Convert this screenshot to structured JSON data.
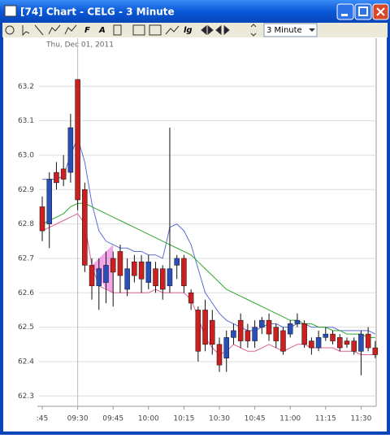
{
  "window": {
    "title": "[74]  Chart - CELG - 3 Minute"
  },
  "toolbar": {
    "labels": [
      "F",
      "A",
      "lg"
    ],
    "timeframe": "3 Minute"
  },
  "chart_data": {
    "type": "candlestick",
    "subtitle": "Thu, Dec 01, 2011",
    "categories": [
      ":45",
      null,
      null,
      null,
      null,
      "09:30",
      null,
      null,
      null,
      null,
      "09:45",
      null,
      null,
      null,
      null,
      "10:00",
      null,
      null,
      null,
      null,
      "10:15",
      null,
      null,
      null,
      null,
      "10:30",
      null,
      null,
      null,
      null,
      "10:45",
      null,
      null,
      null,
      null,
      "11:00",
      null,
      null,
      null,
      null,
      "11:15",
      null,
      null,
      null,
      null,
      "11:30",
      null,
      null
    ],
    "open": [
      62.85,
      62.8,
      62.95,
      62.96,
      62.95,
      63.22,
      62.9,
      62.68,
      62.62,
      62.63,
      62.7,
      62.72,
      62.61,
      62.69,
      62.69,
      62.63,
      62.67,
      62.67,
      62.62,
      62.68,
      62.7,
      62.6,
      62.55,
      62.55,
      62.52,
      62.45,
      62.41,
      62.47,
      62.52,
      62.49,
      62.46,
      62.5,
      62.52,
      62.5,
      62.49,
      62.48,
      62.51,
      62.51,
      62.46,
      62.44,
      62.47,
      62.48,
      62.47,
      62.46,
      62.46,
      62.43,
      62.48,
      62.44
    ],
    "high": [
      62.88,
      62.95,
      62.98,
      63.0,
      63.12,
      63.22,
      62.92,
      62.7,
      62.7,
      62.72,
      62.72,
      62.74,
      62.7,
      62.71,
      62.71,
      62.71,
      62.69,
      62.68,
      63.08,
      62.71,
      62.71,
      62.61,
      62.56,
      62.58,
      62.55,
      62.47,
      62.49,
      62.51,
      62.54,
      62.51,
      62.52,
      62.53,
      62.54,
      62.51,
      62.5,
      62.52,
      62.54,
      62.52,
      62.47,
      62.49,
      62.5,
      62.49,
      62.48,
      62.47,
      62.47,
      62.49,
      62.5,
      62.46
    ],
    "low": [
      62.75,
      62.73,
      62.9,
      62.91,
      62.92,
      62.84,
      62.66,
      62.58,
      62.55,
      62.57,
      62.56,
      62.6,
      62.59,
      62.63,
      62.6,
      62.61,
      62.6,
      62.58,
      62.6,
      62.64,
      62.6,
      62.55,
      62.4,
      62.43,
      62.42,
      62.37,
      62.37,
      62.45,
      62.44,
      62.44,
      62.44,
      62.48,
      62.46,
      62.44,
      62.42,
      62.47,
      62.5,
      62.44,
      62.42,
      62.43,
      62.46,
      62.45,
      62.43,
      62.44,
      62.42,
      62.36,
      62.43,
      62.41
    ],
    "close": [
      62.78,
      62.93,
      62.92,
      62.93,
      63.08,
      62.87,
      62.68,
      62.62,
      62.67,
      62.68,
      62.66,
      62.65,
      62.67,
      62.65,
      62.64,
      62.69,
      62.62,
      62.61,
      62.67,
      62.7,
      62.62,
      62.57,
      62.43,
      62.45,
      62.45,
      62.39,
      62.47,
      62.49,
      62.46,
      62.46,
      62.5,
      62.52,
      62.48,
      62.46,
      62.43,
      62.51,
      62.52,
      62.45,
      62.44,
      62.47,
      62.48,
      62.46,
      62.44,
      62.45,
      62.43,
      62.48,
      62.44,
      62.42
    ],
    "up_color": "#2b4fb8",
    "down_color": "#cc1f1f",
    "lines": [
      {
        "color": "#5a6fd0",
        "values": [
          62.93,
          62.93,
          62.93,
          62.94,
          63.0,
          63.05,
          62.98,
          62.86,
          62.78,
          62.75,
          62.74,
          62.73,
          62.73,
          62.72,
          62.72,
          62.71,
          62.71,
          62.7,
          62.79,
          62.8,
          62.78,
          62.74,
          62.67,
          62.6,
          62.57,
          62.54,
          62.52,
          62.51,
          62.5,
          62.49,
          62.49,
          62.5,
          62.51,
          62.51,
          62.5,
          62.5,
          62.51,
          62.51,
          62.5,
          62.5,
          62.5,
          62.5,
          62.49,
          62.49,
          62.49,
          62.49,
          62.49,
          62.48
        ]
      },
      {
        "color": "#2ea82e",
        "values": [
          62.8,
          62.81,
          62.82,
          62.83,
          62.85,
          62.86,
          62.86,
          62.85,
          62.84,
          62.83,
          62.82,
          62.81,
          62.8,
          62.79,
          62.78,
          62.77,
          62.76,
          62.75,
          62.74,
          62.73,
          62.72,
          62.71,
          62.69,
          62.67,
          62.65,
          62.63,
          62.61,
          62.6,
          62.59,
          62.58,
          62.57,
          62.56,
          62.55,
          62.54,
          62.53,
          62.52,
          62.52,
          62.51,
          62.51,
          62.5,
          62.5,
          62.49,
          62.49,
          62.48,
          62.48,
          62.48,
          62.47,
          62.47
        ]
      },
      {
        "color": "#e0609a",
        "values": [
          62.78,
          62.79,
          62.8,
          62.81,
          62.82,
          62.83,
          62.8,
          62.68,
          62.62,
          62.61,
          62.6,
          62.6,
          62.6,
          62.6,
          62.6,
          62.6,
          62.61,
          62.6,
          62.6,
          62.6,
          62.6,
          62.58,
          62.53,
          62.47,
          62.44,
          62.42,
          62.43,
          62.45,
          62.44,
          62.43,
          62.43,
          62.44,
          62.45,
          62.44,
          62.43,
          62.44,
          62.45,
          62.45,
          62.44,
          62.44,
          62.44,
          62.44,
          62.43,
          62.43,
          62.43,
          62.42,
          62.42,
          62.42
        ]
      }
    ],
    "ylim": [
      62.27,
      63.34
    ],
    "yticks": [
      62.3,
      62.4,
      62.5,
      62.6,
      62.7,
      62.8,
      62.9,
      {
        "value": 63,
        "label": "63.0"
      },
      63.1,
      63.2
    ],
    "grid": true
  }
}
